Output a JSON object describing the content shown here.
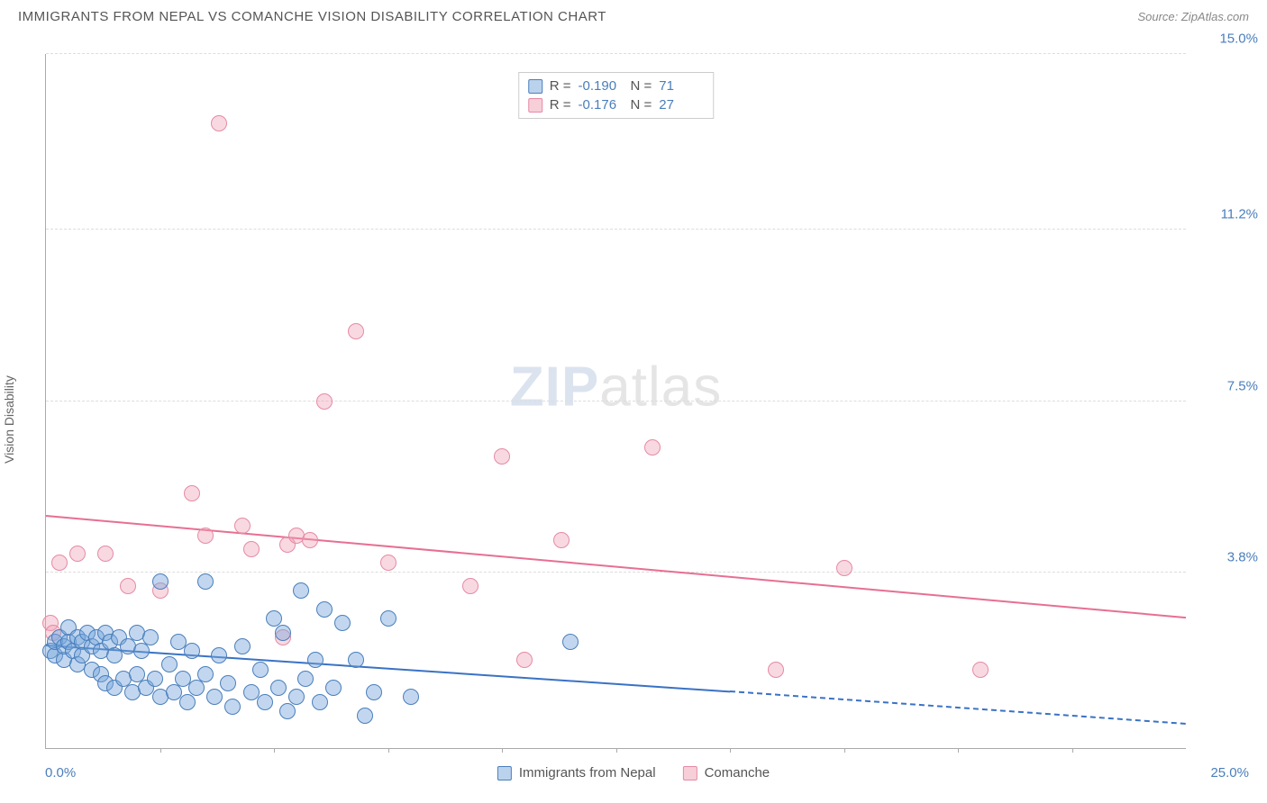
{
  "header": {
    "title": "IMMIGRANTS FROM NEPAL VS COMANCHE VISION DISABILITY CORRELATION CHART",
    "source": "Source: ZipAtlas.com"
  },
  "watermark": {
    "bold": "ZIP",
    "light": "atlas"
  },
  "chart": {
    "type": "scatter",
    "background_color": "#ffffff",
    "grid_color": "#dddddd",
    "axis_color": "#aaaaaa",
    "ylabel": "Vision Disability",
    "label_fontsize": 14,
    "xlim": [
      0,
      25.0
    ],
    "ylim": [
      0,
      15.0
    ],
    "xtick_label_min": "0.0%",
    "xtick_label_max": "25.0%",
    "xtick_marks": [
      2.5,
      5.0,
      7.5,
      10.0,
      12.5,
      15.0,
      17.5,
      20.0,
      22.5
    ],
    "ytick_labels": [
      "3.8%",
      "7.5%",
      "11.2%",
      "15.0%"
    ],
    "ytick_values": [
      3.8,
      7.5,
      11.2,
      15.0
    ],
    "tick_color": "#4a7ebb",
    "marker_radius": 9,
    "marker_radius_small": 7,
    "series": [
      {
        "name": "Immigrants from Nepal",
        "color_fill": "rgba(120,166,220,0.45)",
        "color_stroke": "#4a7ebb",
        "trend_color": "#3a72c4",
        "R": "-0.190",
        "N": "71",
        "trend": {
          "x0": 0,
          "y0": 2.2,
          "x1": 15.0,
          "y1": 1.2,
          "dash_x1": 25.0,
          "dash_y1": 0.5
        },
        "points": [
          [
            0.1,
            2.1
          ],
          [
            0.2,
            2.0
          ],
          [
            0.2,
            2.3
          ],
          [
            0.3,
            2.4
          ],
          [
            0.4,
            1.9
          ],
          [
            0.4,
            2.2
          ],
          [
            0.5,
            2.3
          ],
          [
            0.5,
            2.6
          ],
          [
            0.6,
            2.1
          ],
          [
            0.7,
            2.4
          ],
          [
            0.7,
            1.8
          ],
          [
            0.8,
            2.3
          ],
          [
            0.8,
            2.0
          ],
          [
            0.9,
            2.5
          ],
          [
            1.0,
            2.2
          ],
          [
            1.0,
            1.7
          ],
          [
            1.1,
            2.4
          ],
          [
            1.2,
            1.6
          ],
          [
            1.2,
            2.1
          ],
          [
            1.3,
            2.5
          ],
          [
            1.3,
            1.4
          ],
          [
            1.4,
            2.3
          ],
          [
            1.5,
            1.3
          ],
          [
            1.5,
            2.0
          ],
          [
            1.6,
            2.4
          ],
          [
            1.7,
            1.5
          ],
          [
            1.8,
            2.2
          ],
          [
            1.9,
            1.2
          ],
          [
            2.0,
            2.5
          ],
          [
            2.0,
            1.6
          ],
          [
            2.1,
            2.1
          ],
          [
            2.2,
            1.3
          ],
          [
            2.3,
            2.4
          ],
          [
            2.4,
            1.5
          ],
          [
            2.5,
            1.1
          ],
          [
            2.5,
            3.6
          ],
          [
            2.7,
            1.8
          ],
          [
            2.8,
            1.2
          ],
          [
            2.9,
            2.3
          ],
          [
            3.0,
            1.5
          ],
          [
            3.1,
            1.0
          ],
          [
            3.2,
            2.1
          ],
          [
            3.3,
            1.3
          ],
          [
            3.5,
            1.6
          ],
          [
            3.5,
            3.6
          ],
          [
            3.7,
            1.1
          ],
          [
            3.8,
            2.0
          ],
          [
            4.0,
            1.4
          ],
          [
            4.1,
            0.9
          ],
          [
            4.3,
            2.2
          ],
          [
            4.5,
            1.2
          ],
          [
            4.7,
            1.7
          ],
          [
            4.8,
            1.0
          ],
          [
            5.0,
            2.8
          ],
          [
            5.1,
            1.3
          ],
          [
            5.2,
            2.5
          ],
          [
            5.3,
            0.8
          ],
          [
            5.5,
            1.1
          ],
          [
            5.6,
            3.4
          ],
          [
            5.7,
            1.5
          ],
          [
            5.9,
            1.9
          ],
          [
            6.0,
            1.0
          ],
          [
            6.1,
            3.0
          ],
          [
            6.3,
            1.3
          ],
          [
            6.5,
            2.7
          ],
          [
            6.8,
            1.9
          ],
          [
            7.0,
            0.7
          ],
          [
            7.2,
            1.2
          ],
          [
            7.5,
            2.8
          ],
          [
            8.0,
            1.1
          ],
          [
            11.5,
            2.3
          ]
        ]
      },
      {
        "name": "Comanche",
        "color_fill": "rgba(240,160,180,0.4)",
        "color_stroke": "#e58aa5",
        "trend_color": "#e76f92",
        "R": "-0.176",
        "N": "27",
        "trend": {
          "x0": 0,
          "y0": 5.0,
          "x1": 25.0,
          "y1": 2.8
        },
        "points": [
          [
            0.1,
            2.7
          ],
          [
            0.15,
            2.5
          ],
          [
            0.3,
            4.0
          ],
          [
            0.7,
            4.2
          ],
          [
            1.3,
            4.2
          ],
          [
            1.8,
            3.5
          ],
          [
            2.5,
            3.4
          ],
          [
            3.2,
            5.5
          ],
          [
            3.5,
            4.6
          ],
          [
            3.8,
            13.5
          ],
          [
            4.3,
            4.8
          ],
          [
            4.5,
            4.3
          ],
          [
            5.2,
            2.4
          ],
          [
            5.3,
            4.4
          ],
          [
            5.5,
            4.6
          ],
          [
            6.1,
            7.5
          ],
          [
            6.8,
            9.0
          ],
          [
            7.5,
            4.0
          ],
          [
            9.3,
            3.5
          ],
          [
            10.0,
            6.3
          ],
          [
            10.5,
            1.9
          ],
          [
            11.3,
            4.5
          ],
          [
            13.3,
            6.5
          ],
          [
            16.0,
            1.7
          ],
          [
            17.5,
            3.9
          ],
          [
            20.5,
            1.7
          ],
          [
            5.8,
            4.5
          ]
        ]
      }
    ],
    "bottom_legend": [
      "Immigrants from Nepal",
      "Comanche"
    ]
  }
}
